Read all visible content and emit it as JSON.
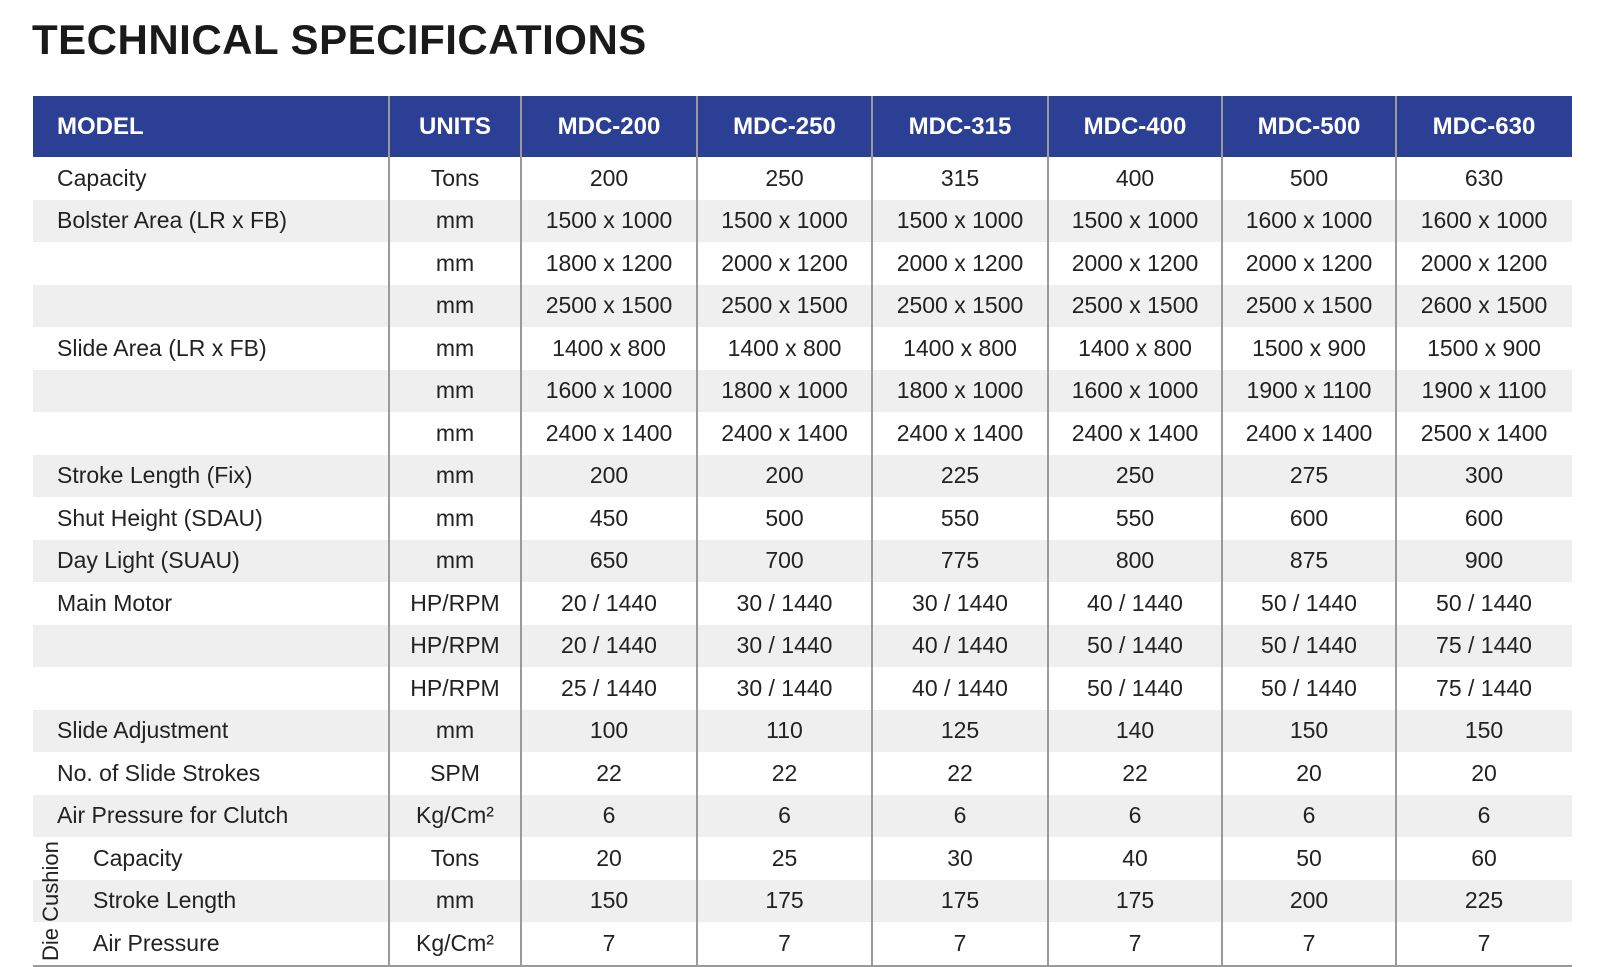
{
  "header": {
    "title": "TECHNICAL SPECIFICATIONS"
  },
  "table": {
    "columns": [
      "MODEL",
      "UNITS",
      "MDC-200",
      "MDC-250",
      "MDC-315",
      "MDC-400",
      "MDC-500",
      "MDC-630"
    ],
    "rows": [
      {
        "label": "Capacity",
        "unit": "Tons",
        "values": [
          "200",
          "250",
          "315",
          "400",
          "500",
          "630"
        ]
      },
      {
        "label": "Bolster Area (LR x FB)",
        "unit": "mm",
        "values": [
          "1500 x 1000",
          "1500 x 1000",
          "1500 x 1000",
          "1500 x 1000",
          "1600 x 1000",
          "1600 x 1000"
        ]
      },
      {
        "label": null,
        "unit": "mm",
        "values": [
          "1800 x 1200",
          "2000 x 1200",
          "2000 x 1200",
          "2000 x 1200",
          "2000 x 1200",
          "2000 x 1200"
        ]
      },
      {
        "label": null,
        "unit": "mm",
        "values": [
          "2500 x 1500",
          "2500 x 1500",
          "2500 x 1500",
          "2500 x 1500",
          "2500 x 1500",
          "2600 x 1500"
        ]
      },
      {
        "label": "Slide Area (LR x FB)",
        "unit": "mm",
        "values": [
          "1400 x 800",
          "1400 x 800",
          "1400 x 800",
          "1400 x 800",
          "1500 x 900",
          "1500 x 900"
        ]
      },
      {
        "label": null,
        "unit": "mm",
        "values": [
          "1600 x 1000",
          "1800 x 1000",
          "1800 x 1000",
          "1600 x 1000",
          "1900 x 1100",
          "1900 x 1100"
        ]
      },
      {
        "label": null,
        "unit": "mm",
        "values": [
          "2400 x 1400",
          "2400 x 1400",
          "2400 x 1400",
          "2400 x 1400",
          "2400 x 1400",
          "2500 x 1400"
        ]
      },
      {
        "label": "Stroke Length (Fix)",
        "unit": "mm",
        "values": [
          "200",
          "200",
          "225",
          "250",
          "275",
          "300"
        ]
      },
      {
        "label": "Shut Height (SDAU)",
        "unit": "mm",
        "values": [
          "450",
          "500",
          "550",
          "550",
          "600",
          "600"
        ]
      },
      {
        "label": "Day Light (SUAU)",
        "unit": "mm",
        "values": [
          "650",
          "700",
          "775",
          "800",
          "875",
          "900"
        ]
      },
      {
        "label": "Main Motor",
        "unit": "HP/RPM",
        "values": [
          "20 / 1440",
          "30 / 1440",
          "30 / 1440",
          "40 / 1440",
          "50 / 1440",
          "50 / 1440"
        ]
      },
      {
        "label": null,
        "unit": "HP/RPM",
        "values": [
          "20 / 1440",
          "30 / 1440",
          "40 / 1440",
          "50 / 1440",
          "50 / 1440",
          "75 / 1440"
        ]
      },
      {
        "label": null,
        "unit": "HP/RPM",
        "values": [
          "25 / 1440",
          "30 / 1440",
          "40 / 1440",
          "50 / 1440",
          "50 / 1440",
          "75 / 1440"
        ]
      },
      {
        "label": "Slide Adjustment",
        "unit": "mm",
        "values": [
          "100",
          "110",
          "125",
          "140",
          "150",
          "150"
        ]
      },
      {
        "label": "No. of Slide Strokes",
        "unit": "SPM",
        "values": [
          "22",
          "22",
          "22",
          "22",
          "20",
          "20"
        ]
      },
      {
        "label": "Air Pressure for Clutch",
        "unit": "Kg/Cm²",
        "values": [
          "6",
          "6",
          "6",
          "6",
          "6",
          "6"
        ]
      }
    ],
    "die_cushion": {
      "label": "Die Cushion",
      "rows": [
        {
          "label": "Capacity",
          "unit": "Tons",
          "values": [
            "20",
            "25",
            "30",
            "40",
            "50",
            "60"
          ]
        },
        {
          "label": "Stroke Length",
          "unit": "mm",
          "values": [
            "150",
            "175",
            "175",
            "175",
            "200",
            "225"
          ]
        },
        {
          "label": "Air Pressure",
          "unit": "Kg/Cm²",
          "values": [
            "7",
            "7",
            "7",
            "7",
            "7",
            "7"
          ]
        }
      ]
    }
  }
}
